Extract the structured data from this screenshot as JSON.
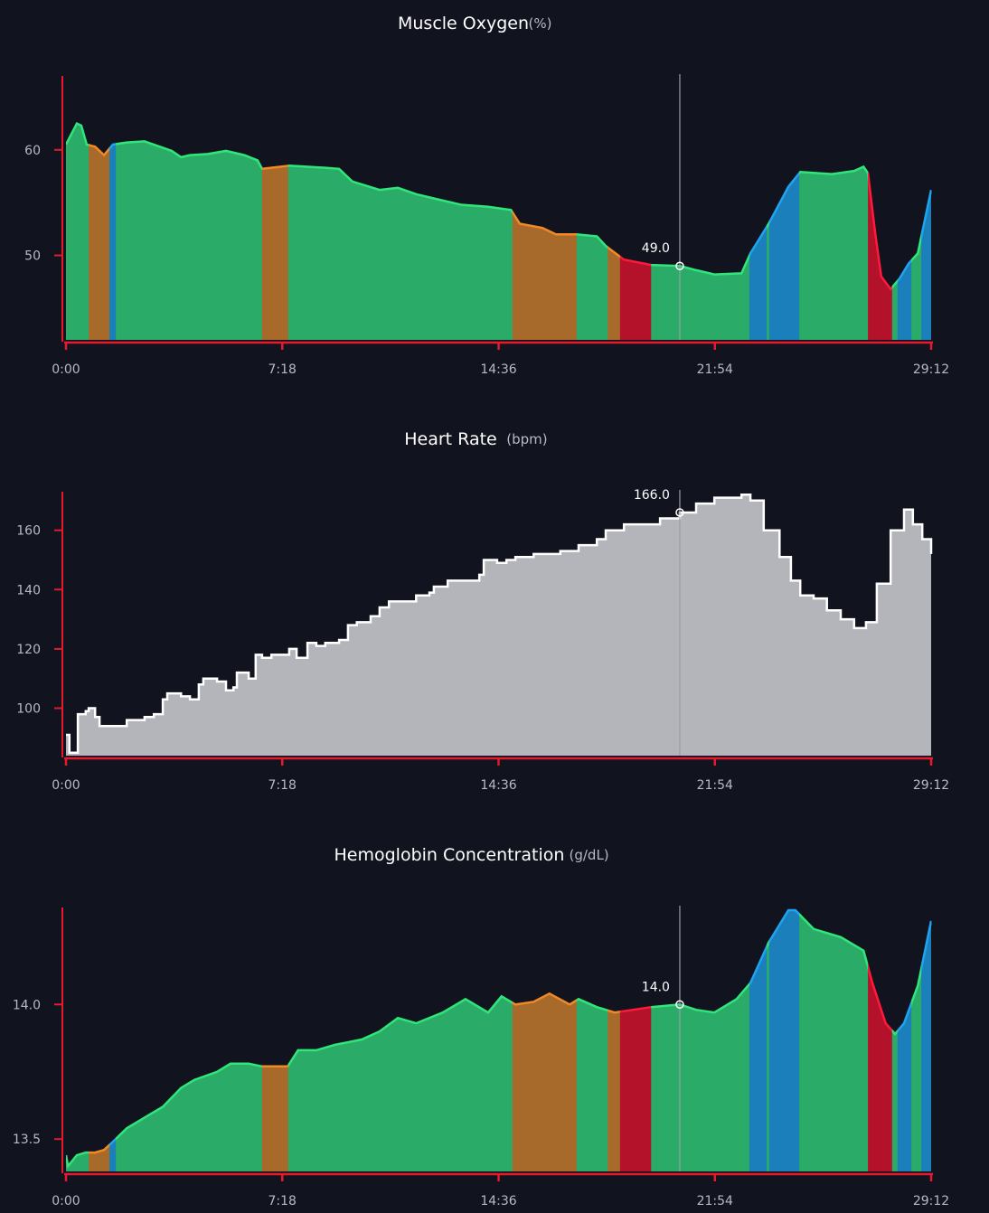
{
  "colors": {
    "background": "#11131f",
    "axis": "#e8192c",
    "cursor": "#9a9ca4",
    "zones": {
      "green": {
        "fill": "#2bab68",
        "line": "#30e67a"
      },
      "orange": {
        "fill": "#a86a2a",
        "line": "#f08a24"
      },
      "blue": {
        "fill": "#1a7fba",
        "line": "#1ea4f0"
      },
      "red": {
        "fill": "#b3122a",
        "line": "#ff1a3a"
      }
    },
    "heart_rate": {
      "fill": "#b3b5bb",
      "line": "#ffffff"
    }
  },
  "zones": [
    [
      "0:00",
      "0:46",
      "green"
    ],
    [
      "0:46",
      "1:28",
      "orange"
    ],
    [
      "1:28",
      "1:41",
      "blue"
    ],
    [
      "1:41",
      "6:37",
      "green"
    ],
    [
      "6:37",
      "7:30",
      "orange"
    ],
    [
      "7:30",
      "15:04",
      "green"
    ],
    [
      "15:04",
      "17:14",
      "orange"
    ],
    [
      "17:14",
      "18:17",
      "green"
    ],
    [
      "18:17",
      "18:42",
      "orange"
    ],
    [
      "18:42",
      "19:45",
      "red"
    ],
    [
      "19:45",
      "23:04",
      "green"
    ],
    [
      "23:04",
      "23:39",
      "blue"
    ],
    [
      "23:39",
      "23:44",
      "green"
    ],
    [
      "23:44",
      "24:45",
      "blue"
    ],
    [
      "24:45",
      "27:04",
      "green"
    ],
    [
      "27:04",
      "27:53",
      "red"
    ],
    [
      "27:53",
      "28:04",
      "green"
    ],
    [
      "28:04",
      "28:32",
      "blue"
    ],
    [
      "28:32",
      "28:52",
      "green"
    ],
    [
      "28:52",
      "29:12",
      "blue"
    ]
  ],
  "chart_data": [
    {
      "type": "area",
      "title": "Muscle Oxygen",
      "unit": "(%)",
      "xticks": [
        "0:00",
        "7:18",
        "14:36",
        "21:54",
        "29:12"
      ],
      "xlim": [
        "0:00",
        "29:12"
      ],
      "yticks": [
        "50",
        "60"
      ],
      "ylim": [
        42,
        67
      ],
      "colored_by_zone": true,
      "cursor": {
        "time": "20:43",
        "value": 49.0,
        "label": "49.0"
      },
      "points": [
        [
          "0:00",
          60.5
        ],
        [
          "0:22",
          62.5
        ],
        [
          "0:31",
          62.3
        ],
        [
          "0:42",
          60.5
        ],
        [
          "0:59",
          60.3
        ],
        [
          "1:17",
          59.5
        ],
        [
          "1:35",
          60.5
        ],
        [
          "2:03",
          60.7
        ],
        [
          "2:39",
          60.8
        ],
        [
          "3:16",
          60.2
        ],
        [
          "3:34",
          59.9
        ],
        [
          "3:53",
          59.3
        ],
        [
          "4:11",
          59.5
        ],
        [
          "4:47",
          59.6
        ],
        [
          "5:24",
          59.9
        ],
        [
          "6:01",
          59.5
        ],
        [
          "6:28",
          59.0
        ],
        [
          "6:37",
          58.2
        ],
        [
          "7:32",
          58.5
        ],
        [
          "8:45",
          58.3
        ],
        [
          "9:13",
          58.2
        ],
        [
          "9:40",
          57.0
        ],
        [
          "10:35",
          56.2
        ],
        [
          "11:12",
          56.4
        ],
        [
          "11:49",
          55.8
        ],
        [
          "12:25",
          55.4
        ],
        [
          "13:20",
          54.8
        ],
        [
          "14:15",
          54.6
        ],
        [
          "15:01",
          54.3
        ],
        [
          "15:19",
          53.0
        ],
        [
          "16:05",
          52.6
        ],
        [
          "16:32",
          52.0
        ],
        [
          "17:13",
          52.0
        ],
        [
          "17:55",
          51.8
        ],
        [
          "18:13",
          50.9
        ],
        [
          "18:50",
          49.6
        ],
        [
          "19:45",
          49.1
        ],
        [
          "20:43",
          49.0
        ],
        [
          "21:16",
          48.6
        ],
        [
          "21:53",
          48.2
        ],
        [
          "22:48",
          48.3
        ],
        [
          "23:06",
          50.2
        ],
        [
          "23:43",
          53.0
        ],
        [
          "24:23",
          56.5
        ],
        [
          "24:47",
          57.9
        ],
        [
          "25:51",
          57.7
        ],
        [
          "26:36",
          58.0
        ],
        [
          "26:55",
          58.4
        ],
        [
          "27:04",
          57.8
        ],
        [
          "27:19",
          52.0
        ],
        [
          "27:31",
          48.0
        ],
        [
          "27:50",
          46.8
        ],
        [
          "28:08",
          47.8
        ],
        [
          "28:26",
          49.2
        ],
        [
          "28:45",
          50.2
        ],
        [
          "29:12",
          56.2
        ]
      ]
    },
    {
      "type": "area",
      "title": "Heart Rate",
      "unit": "(bpm)",
      "xticks": [
        "0:00",
        "7:18",
        "14:36",
        "21:54",
        "29:12"
      ],
      "xlim": [
        "0:00",
        "29:12"
      ],
      "yticks": [
        "100",
        "120",
        "140",
        "160"
      ],
      "ylim": [
        84,
        173
      ],
      "colored_by_zone": false,
      "stepped": true,
      "cursor": {
        "time": "20:43",
        "value": 166.0,
        "label": "166.0"
      },
      "points": [
        [
          "0:00",
          91
        ],
        [
          "0:07",
          85
        ],
        [
          "0:16",
          85
        ],
        [
          "0:24",
          98
        ],
        [
          "0:40",
          99
        ],
        [
          "0:46",
          100
        ],
        [
          "0:59",
          97
        ],
        [
          "1:08",
          94
        ],
        [
          "1:44",
          94
        ],
        [
          "2:03",
          96
        ],
        [
          "2:21",
          96
        ],
        [
          "2:39",
          97
        ],
        [
          "2:58",
          98
        ],
        [
          "3:16",
          103
        ],
        [
          "3:25",
          105
        ],
        [
          "3:53",
          104
        ],
        [
          "4:11",
          103
        ],
        [
          "4:29",
          108
        ],
        [
          "4:38",
          110
        ],
        [
          "5:06",
          109
        ],
        [
          "5:24",
          106
        ],
        [
          "5:39",
          107
        ],
        [
          "5:46",
          112
        ],
        [
          "5:57",
          112
        ],
        [
          "6:10",
          110
        ],
        [
          "6:24",
          118
        ],
        [
          "6:37",
          117
        ],
        [
          "6:56",
          118
        ],
        [
          "7:32",
          120
        ],
        [
          "7:47",
          117
        ],
        [
          "8:09",
          122
        ],
        [
          "8:27",
          121
        ],
        [
          "8:45",
          122
        ],
        [
          "9:13",
          123
        ],
        [
          "9:31",
          128
        ],
        [
          "9:49",
          129
        ],
        [
          "10:17",
          131
        ],
        [
          "10:35",
          134
        ],
        [
          "10:54",
          136
        ],
        [
          "11:21",
          136
        ],
        [
          "11:49",
          138
        ],
        [
          "12:16",
          139
        ],
        [
          "12:25",
          141
        ],
        [
          "12:53",
          143
        ],
        [
          "13:20",
          143
        ],
        [
          "13:57",
          145
        ],
        [
          "14:06",
          150
        ],
        [
          "14:33",
          149
        ],
        [
          "14:52",
          150
        ],
        [
          "15:10",
          151
        ],
        [
          "15:47",
          152
        ],
        [
          "16:41",
          153
        ],
        [
          "17:18",
          155
        ],
        [
          "17:55",
          157
        ],
        [
          "18:13",
          160
        ],
        [
          "18:50",
          162
        ],
        [
          "19:26",
          162
        ],
        [
          "20:03",
          164
        ],
        [
          "20:43",
          166
        ],
        [
          "21:16",
          169
        ],
        [
          "21:53",
          171
        ],
        [
          "22:48",
          172
        ],
        [
          "23:06",
          170
        ],
        [
          "23:33",
          160
        ],
        [
          "24:05",
          151
        ],
        [
          "24:28",
          143
        ],
        [
          "24:47",
          138
        ],
        [
          "25:14",
          137
        ],
        [
          "25:41",
          133
        ],
        [
          "26:09",
          130
        ],
        [
          "26:36",
          127
        ],
        [
          "27:00",
          129
        ],
        [
          "27:22",
          142
        ],
        [
          "27:50",
          160
        ],
        [
          "28:17",
          167
        ],
        [
          "28:35",
          162
        ],
        [
          "28:54",
          157
        ],
        [
          "29:12",
          152
        ]
      ]
    },
    {
      "type": "area",
      "title": "Hemoglobin Concentration",
      "unit": "(g/dL)",
      "xticks": [
        "0:00",
        "7:18",
        "14:36",
        "21:54",
        "29:12"
      ],
      "xlim": [
        "0:00",
        "29:12"
      ],
      "yticks": [
        "13.5",
        "14.0"
      ],
      "ylim": [
        13.38,
        14.36
      ],
      "colored_by_zone": true,
      "cursor": {
        "time": "20:43",
        "value": 14.0,
        "label": "14.0"
      },
      "points": [
        [
          "0:00",
          13.44
        ],
        [
          "0:04",
          13.4
        ],
        [
          "0:22",
          13.44
        ],
        [
          "0:40",
          13.45
        ],
        [
          "0:59",
          13.45
        ],
        [
          "1:17",
          13.46
        ],
        [
          "1:35",
          13.49
        ],
        [
          "2:03",
          13.54
        ],
        [
          "2:39",
          13.58
        ],
        [
          "3:16",
          13.62
        ],
        [
          "3:53",
          13.69
        ],
        [
          "4:20",
          13.72
        ],
        [
          "5:06",
          13.75
        ],
        [
          "5:33",
          13.78
        ],
        [
          "6:10",
          13.78
        ],
        [
          "6:37",
          13.77
        ],
        [
          "7:29",
          13.77
        ],
        [
          "7:50",
          13.83
        ],
        [
          "8:27",
          13.83
        ],
        [
          "9:04",
          13.85
        ],
        [
          "9:59",
          13.87
        ],
        [
          "10:35",
          13.9
        ],
        [
          "11:12",
          13.95
        ],
        [
          "11:49",
          13.93
        ],
        [
          "12:43",
          13.97
        ],
        [
          "13:29",
          14.02
        ],
        [
          "14:15",
          13.97
        ],
        [
          "14:42",
          14.03
        ],
        [
          "15:10",
          14.0
        ],
        [
          "15:47",
          14.01
        ],
        [
          "16:19",
          14.04
        ],
        [
          "17:00",
          14.0
        ],
        [
          "17:18",
          14.02
        ],
        [
          "17:55",
          13.99
        ],
        [
          "18:31",
          13.97
        ],
        [
          "19:08",
          13.98
        ],
        [
          "19:45",
          13.99
        ],
        [
          "20:43",
          14.0
        ],
        [
          "21:16",
          13.98
        ],
        [
          "21:53",
          13.97
        ],
        [
          "22:38",
          14.02
        ],
        [
          "23:06",
          14.08
        ],
        [
          "23:43",
          14.23
        ],
        [
          "24:23",
          14.35
        ],
        [
          "24:37",
          14.35
        ],
        [
          "25:14",
          14.28
        ],
        [
          "26:09",
          14.25
        ],
        [
          "26:55",
          14.2
        ],
        [
          "27:13",
          14.08
        ],
        [
          "27:40",
          13.93
        ],
        [
          "27:59",
          13.89
        ],
        [
          "28:17",
          13.93
        ],
        [
          "28:45",
          14.07
        ],
        [
          "29:12",
          14.31
        ]
      ]
    }
  ]
}
